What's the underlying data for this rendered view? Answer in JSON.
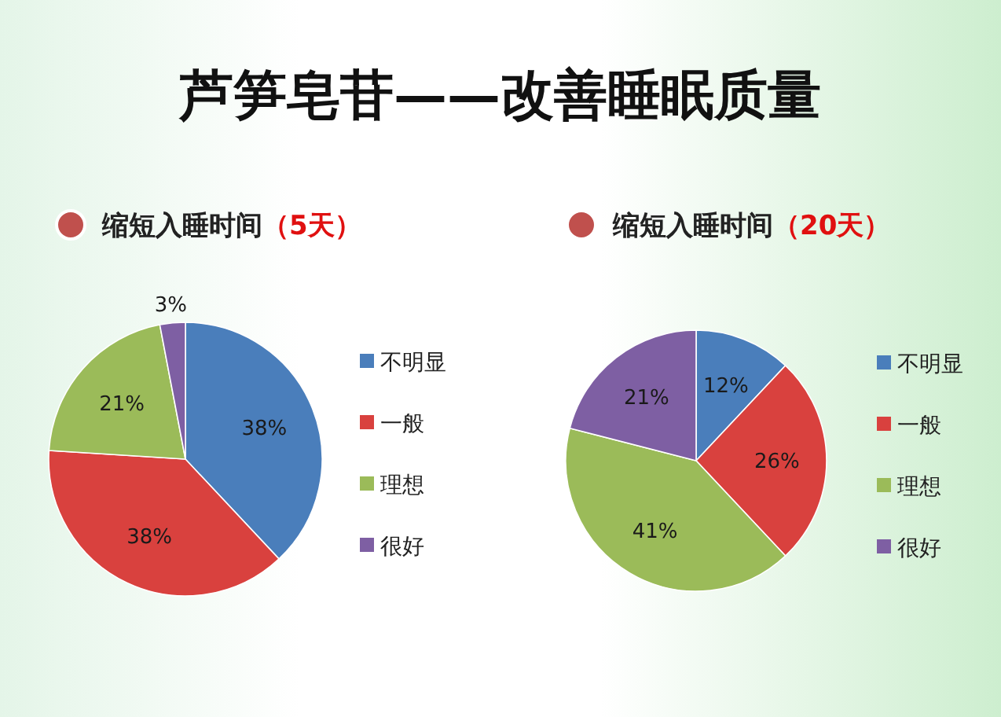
{
  "chart_data": [
    {
      "type": "pie",
      "title": "芦笋皂苷——改善睡眠质量",
      "subtitle": "缩短入睡时间（5天）",
      "categories": [
        "不明显",
        "一般",
        "理想",
        "很好"
      ],
      "values": [
        38,
        38,
        21,
        3
      ],
      "value_labels": [
        "38%",
        "38%",
        "21%",
        "3%"
      ],
      "colors": [
        "#4a7ebb",
        "#d9413e",
        "#9bbb59",
        "#7e5fa3"
      ],
      "legend": "right"
    },
    {
      "type": "pie",
      "subtitle": "缩短入睡时间（20天）",
      "categories": [
        "不明显",
        "一般",
        "理想",
        "很好"
      ],
      "values": [
        12,
        26,
        41,
        21
      ],
      "value_labels": [
        "12%",
        "26%",
        "41%",
        "21%"
      ],
      "colors": [
        "#4a7ebb",
        "#d9413e",
        "#9bbb59",
        "#7e5fa3"
      ],
      "legend": "right"
    }
  ]
}
